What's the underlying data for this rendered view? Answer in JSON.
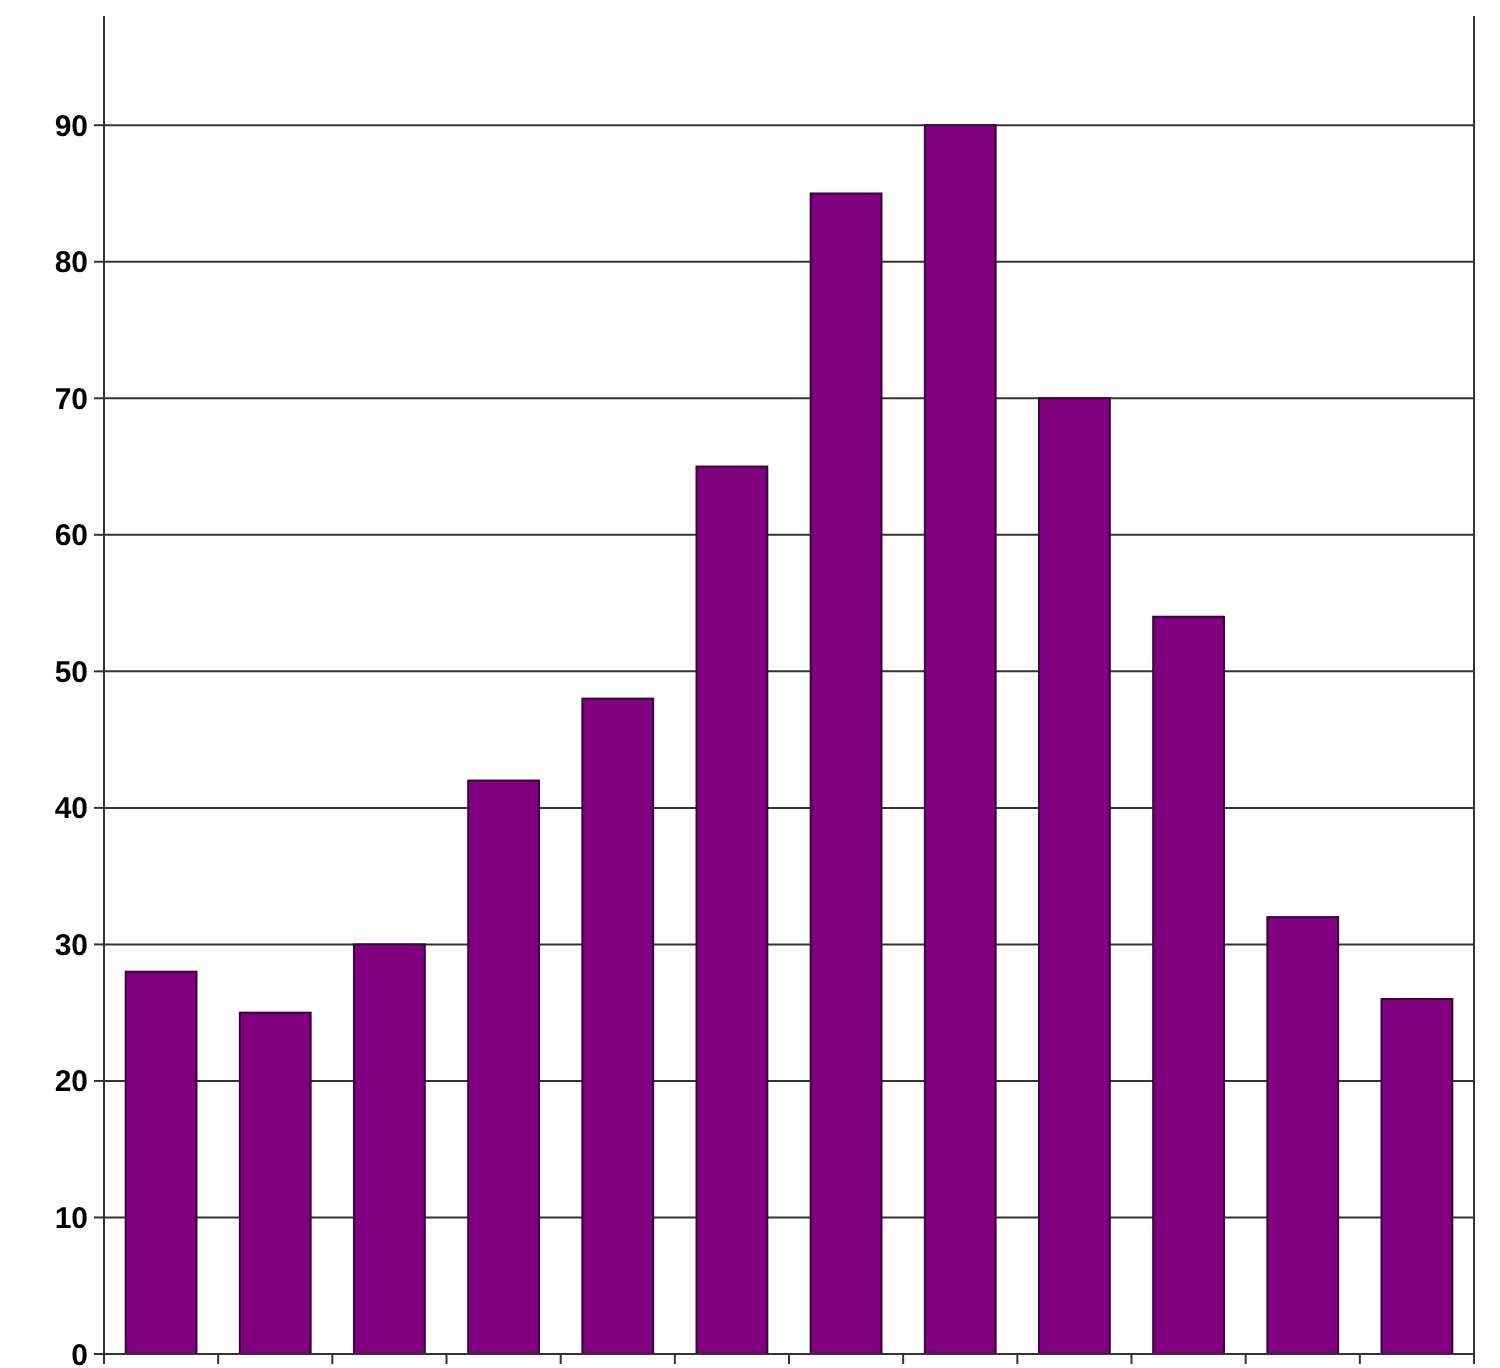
{
  "chart_data": {
    "type": "bar",
    "categories": [
      null,
      null,
      null,
      null,
      null,
      null,
      null,
      null,
      null,
      null,
      null,
      null
    ],
    "values": [
      28,
      25,
      30,
      42,
      48,
      65,
      85,
      90,
      70,
      54,
      32,
      26
    ],
    "color": "#800080",
    "ylim": [
      0,
      98
    ],
    "yticks": [
      0,
      10,
      20,
      30,
      40,
      50,
      60,
      70,
      80,
      90
    ],
    "grid": "y"
  }
}
